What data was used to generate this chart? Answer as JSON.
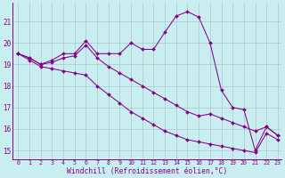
{
  "background_color": "#c8eef0",
  "line_color": "#880088",
  "grid_color": "#aabbcc",
  "xlabel": "Windchill (Refroidissement éolien,°C)",
  "xlim": [
    -0.5,
    23.3
  ],
  "ylim": [
    14.6,
    21.85
  ],
  "xticks": [
    0,
    1,
    2,
    3,
    4,
    5,
    6,
    7,
    8,
    9,
    10,
    11,
    12,
    13,
    14,
    15,
    16,
    17,
    18,
    19,
    20,
    21,
    22,
    23
  ],
  "yticks": [
    15,
    16,
    17,
    18,
    19,
    20,
    21
  ],
  "line1_x": [
    0,
    1,
    2,
    3,
    4,
    5,
    6,
    7,
    8,
    9,
    10,
    11,
    12,
    13,
    14,
    15,
    16,
    17,
    18,
    19,
    20,
    21,
    22,
    23
  ],
  "line1_y": [
    19.5,
    19.3,
    19.0,
    19.2,
    19.5,
    19.5,
    20.1,
    19.5,
    19.5,
    19.5,
    20.0,
    19.7,
    19.7,
    20.5,
    21.25,
    21.45,
    21.2,
    20.0,
    17.8,
    17.0,
    16.9,
    15.0,
    16.1,
    15.7
  ],
  "line2_x": [
    0,
    1,
    2,
    3,
    4,
    5,
    6,
    7,
    8,
    9,
    10,
    11,
    12,
    13,
    14,
    15,
    16,
    17,
    18,
    19,
    20,
    21,
    22,
    23
  ],
  "line2_y": [
    19.5,
    19.3,
    19.0,
    19.1,
    19.3,
    19.4,
    19.9,
    19.3,
    18.9,
    18.6,
    18.3,
    18.0,
    17.7,
    17.4,
    17.1,
    16.8,
    16.6,
    16.7,
    16.5,
    16.3,
    16.1,
    15.9,
    16.1,
    15.7
  ],
  "line3_x": [
    0,
    1,
    2,
    3,
    4,
    5,
    6,
    7,
    8,
    9,
    10,
    11,
    12,
    13,
    14,
    15,
    16,
    17,
    18,
    19,
    20,
    21,
    22,
    23
  ],
  "line3_y": [
    19.5,
    19.2,
    18.9,
    18.8,
    18.7,
    18.6,
    18.5,
    18.0,
    17.6,
    17.2,
    16.8,
    16.5,
    16.2,
    15.9,
    15.7,
    15.5,
    15.4,
    15.3,
    15.2,
    15.1,
    15.0,
    14.9,
    15.8,
    15.5
  ]
}
